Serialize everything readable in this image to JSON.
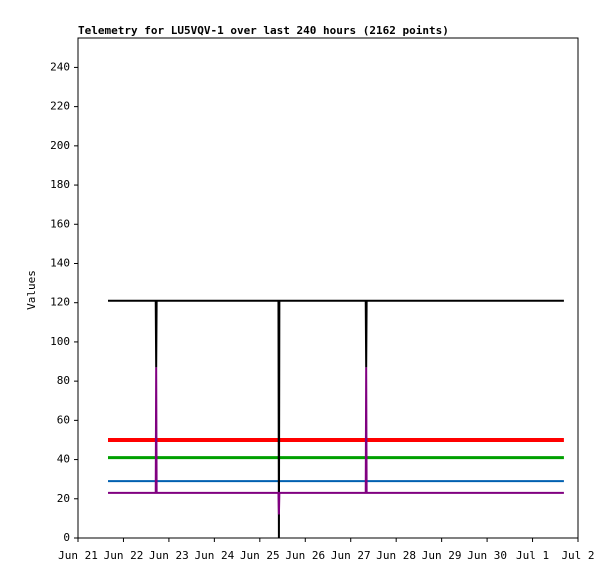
{
  "chart_data": {
    "type": "line",
    "title": "Telemetry for LU5VQV-1 over last 240 hours (2162 points)",
    "y_label": "Values",
    "x": [
      0.66,
      1.71,
      1.72,
      1.73,
      4.41,
      4.42,
      4.43,
      6.33,
      6.34,
      6.35,
      10.69
    ],
    "xlim": [
      0,
      11
    ],
    "xticks": [
      {
        "value": 0,
        "label": "Jun 21"
      },
      {
        "value": 1,
        "label": "Jun 22"
      },
      {
        "value": 2,
        "label": "Jun 23"
      },
      {
        "value": 3,
        "label": "Jun 24"
      },
      {
        "value": 4,
        "label": "Jun 25"
      },
      {
        "value": 5,
        "label": "Jun 26"
      },
      {
        "value": 6,
        "label": "Jun 27"
      },
      {
        "value": 7,
        "label": "Jun 28"
      },
      {
        "value": 8,
        "label": "Jun 29"
      },
      {
        "value": 9,
        "label": "Jun 30"
      },
      {
        "value": 10,
        "label": "Jul 1"
      },
      {
        "value": 11,
        "label": "Jul 2"
      }
    ],
    "ylim": [
      0,
      255
    ],
    "yticks": [
      0,
      20,
      40,
      60,
      80,
      100,
      120,
      140,
      160,
      180,
      200,
      220,
      240
    ],
    "grid": false,
    "series": [
      {
        "color": "#ff0000",
        "width": 4,
        "values": [
          50,
          50,
          50,
          50,
          50,
          50,
          50,
          50,
          50,
          50,
          50
        ]
      },
      {
        "color": "#00a000",
        "width": 3,
        "values": [
          41,
          41,
          41,
          41,
          41,
          41,
          41,
          41,
          41,
          41,
          41
        ]
      },
      {
        "color": "#0060b0",
        "width": 2,
        "values": [
          29,
          29,
          29,
          29,
          29,
          29,
          29,
          29,
          29,
          29,
          29
        ]
      },
      {
        "color": "#000000",
        "width": 2,
        "values": [
          121,
          121,
          87,
          121,
          121,
          0,
          121,
          121,
          87,
          121,
          121
        ]
      },
      {
        "color": "#800080",
        "width": 2,
        "values": [
          23,
          23,
          87,
          23,
          23,
          12,
          23,
          23,
          87,
          23,
          23
        ]
      }
    ]
  }
}
